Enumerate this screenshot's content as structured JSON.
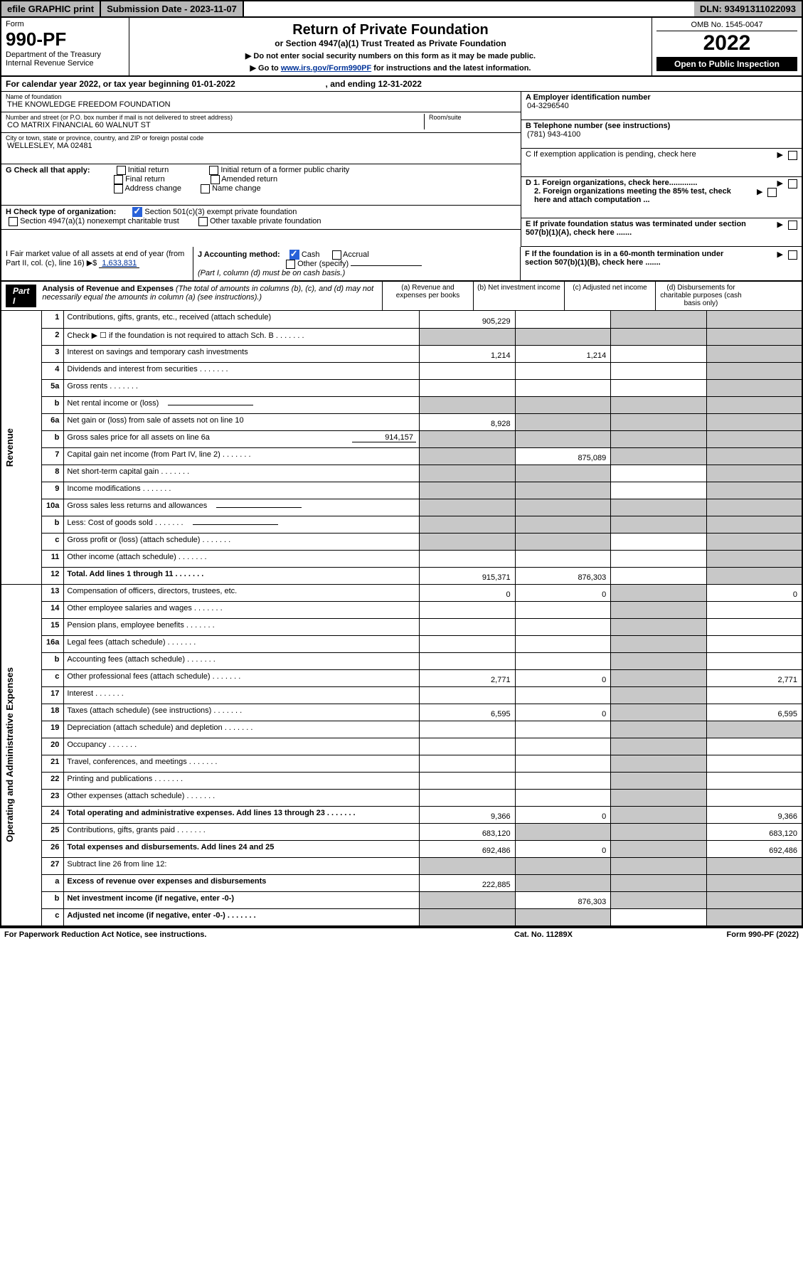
{
  "topbar": {
    "efile": "efile GRAPHIC print",
    "subdate_label": "Submission Date - 2023-11-07",
    "dln": "DLN: 93491311022093"
  },
  "head": {
    "form_word": "Form",
    "form_no": "990-PF",
    "dept": "Department of the Treasury",
    "irs": "Internal Revenue Service",
    "title": "Return of Private Foundation",
    "subtitle": "or Section 4947(a)(1) Trust Treated as Private Foundation",
    "instr1": "▶ Do not enter social security numbers on this form as it may be made public.",
    "instr2_pre": "▶ Go to ",
    "instr2_link": "www.irs.gov/Form990PF",
    "instr2_post": " for instructions and the latest information.",
    "omb": "OMB No. 1545-0047",
    "year": "2022",
    "opento": "Open to Public Inspection"
  },
  "calendar": {
    "text_pre": "For calendar year 2022, or tax year beginning ",
    "begin": "01-01-2022",
    "text_mid": " , and ending ",
    "end": "12-31-2022"
  },
  "id": {
    "name_lbl": "Name of foundation",
    "name": "THE KNOWLEDGE FREEDOM FOUNDATION",
    "addr_lbl": "Number and street (or P.O. box number if mail is not delivered to street address)",
    "addr": "CO MATRIX FINANCIAL 60 WALNUT ST",
    "room_lbl": "Room/suite",
    "city_lbl": "City or town, state or province, country, and ZIP or foreign postal code",
    "city": "WELLESLEY, MA  02481",
    "a_lbl": "A Employer identification number",
    "a_val": "04-3296540",
    "b_lbl": "B Telephone number (see instructions)",
    "b_val": "(781) 943-4100",
    "c_lbl": "C If exemption application is pending, check here",
    "d1_lbl": "D 1. Foreign organizations, check here.............",
    "d2_lbl": "2. Foreign organizations meeting the 85% test, check here and attach computation ...",
    "e_lbl": "E  If private foundation status was terminated under section 507(b)(1)(A), check here .......",
    "f_lbl": "F  If the foundation is in a 60-month termination under section 507(b)(1)(B), check here .......",
    "g_lbl": "G Check all that apply:",
    "g_opts": [
      "Initial return",
      "Final return",
      "Address change",
      "Initial return of a former public charity",
      "Amended return",
      "Name change"
    ],
    "h_lbl": "H Check type of organization:",
    "h_opts": [
      "Section 501(c)(3) exempt private foundation",
      "Section 4947(a)(1) nonexempt charitable trust",
      "Other taxable private foundation"
    ],
    "i_lbl_pre": "I Fair market value of all assets at end of year (from Part II, col. (c), line 16) ▶$ ",
    "i_val": "1,633,831",
    "j_lbl": "J Accounting method:",
    "j_opts": [
      "Cash",
      "Accrual",
      "Other (specify)"
    ],
    "j_note": "(Part I, column (d) must be on cash basis.)"
  },
  "part1": {
    "label": "Part I",
    "hdr": "Analysis of Revenue and Expenses",
    "hdr_note": " (The total of amounts in columns (b), (c), and (d) may not necessarily equal the amounts in column (a) (see instructions).)",
    "col_a": "(a)  Revenue and expenses per books",
    "col_b": "(b)  Net investment income",
    "col_c": "(c)  Adjusted net income",
    "col_d": "(d)  Disbursements for charitable purposes (cash basis only)"
  },
  "sidelabels": {
    "rev": "Revenue",
    "ope": "Operating and Administrative Expenses"
  },
  "rows": [
    {
      "n": "1",
      "l": "Contributions, gifts, grants, etc., received (attach schedule)",
      "a": "905,229",
      "b": "",
      "c": "grey",
      "d": "grey"
    },
    {
      "n": "2",
      "l": "Check ▶ ☐  if the foundation is not required to attach Sch. B",
      "a": "grey",
      "b": "grey",
      "c": "grey",
      "d": "grey",
      "dots": true
    },
    {
      "n": "3",
      "l": "Interest on savings and temporary cash investments",
      "a": "1,214",
      "b": "1,214",
      "c": "",
      "d": "grey"
    },
    {
      "n": "4",
      "l": "Dividends and interest from securities",
      "a": "",
      "b": "",
      "c": "",
      "d": "grey",
      "dots": true
    },
    {
      "n": "5a",
      "l": "Gross rents",
      "a": "",
      "b": "",
      "c": "",
      "d": "grey",
      "dots": true
    },
    {
      "n": "b",
      "l": "Net rental income or (loss)",
      "a": "grey",
      "b": "grey",
      "c": "grey",
      "d": "grey",
      "inline": true
    },
    {
      "n": "6a",
      "l": "Net gain or (loss) from sale of assets not on line 10",
      "a": "8,928",
      "b": "grey",
      "c": "grey",
      "d": "grey"
    },
    {
      "n": "b",
      "l": "Gross sales price for all assets on line 6a",
      "inline_val": "914,157",
      "a": "grey",
      "b": "grey",
      "c": "grey",
      "d": "grey"
    },
    {
      "n": "7",
      "l": "Capital gain net income (from Part IV, line 2)",
      "a": "grey",
      "b": "875,089",
      "c": "grey",
      "d": "grey",
      "dots": true
    },
    {
      "n": "8",
      "l": "Net short-term capital gain",
      "a": "grey",
      "b": "grey",
      "c": "",
      "d": "grey",
      "dots": true
    },
    {
      "n": "9",
      "l": "Income modifications",
      "a": "grey",
      "b": "grey",
      "c": "",
      "d": "grey",
      "dots": true
    },
    {
      "n": "10a",
      "l": "Gross sales less returns and allowances",
      "a": "grey",
      "b": "grey",
      "c": "grey",
      "d": "grey",
      "inline": true
    },
    {
      "n": "b",
      "l": "Less: Cost of goods sold",
      "a": "grey",
      "b": "grey",
      "c": "grey",
      "d": "grey",
      "inline": true,
      "dots": true
    },
    {
      "n": "c",
      "l": "Gross profit or (loss) (attach schedule)",
      "a": "grey",
      "b": "grey",
      "c": "",
      "d": "grey",
      "dots": true
    },
    {
      "n": "11",
      "l": "Other income (attach schedule)",
      "a": "",
      "b": "",
      "c": "",
      "d": "grey",
      "dots": true
    },
    {
      "n": "12",
      "l": "Total. Add lines 1 through 11",
      "bold": true,
      "a": "915,371",
      "b": "876,303",
      "c": "",
      "d": "grey",
      "dots": true
    },
    {
      "n": "13",
      "l": "Compensation of officers, directors, trustees, etc.",
      "a": "0",
      "b": "0",
      "c": "grey",
      "d": "0"
    },
    {
      "n": "14",
      "l": "Other employee salaries and wages",
      "a": "",
      "b": "",
      "c": "grey",
      "d": "",
      "dots": true
    },
    {
      "n": "15",
      "l": "Pension plans, employee benefits",
      "a": "",
      "b": "",
      "c": "grey",
      "d": "",
      "dots": true
    },
    {
      "n": "16a",
      "l": "Legal fees (attach schedule)",
      "a": "",
      "b": "",
      "c": "grey",
      "d": "",
      "dots": true
    },
    {
      "n": "b",
      "l": "Accounting fees (attach schedule)",
      "a": "",
      "b": "",
      "c": "grey",
      "d": "",
      "dots": true
    },
    {
      "n": "c",
      "l": "Other professional fees (attach schedule)",
      "a": "2,771",
      "b": "0",
      "c": "grey",
      "d": "2,771",
      "dots": true
    },
    {
      "n": "17",
      "l": "Interest",
      "a": "",
      "b": "",
      "c": "grey",
      "d": "",
      "dots": true
    },
    {
      "n": "18",
      "l": "Taxes (attach schedule) (see instructions)",
      "a": "6,595",
      "b": "0",
      "c": "grey",
      "d": "6,595",
      "dots": true
    },
    {
      "n": "19",
      "l": "Depreciation (attach schedule) and depletion",
      "a": "",
      "b": "",
      "c": "grey",
      "d": "grey",
      "dots": true
    },
    {
      "n": "20",
      "l": "Occupancy",
      "a": "",
      "b": "",
      "c": "grey",
      "d": "",
      "dots": true
    },
    {
      "n": "21",
      "l": "Travel, conferences, and meetings",
      "a": "",
      "b": "",
      "c": "grey",
      "d": "",
      "dots": true
    },
    {
      "n": "22",
      "l": "Printing and publications",
      "a": "",
      "b": "",
      "c": "grey",
      "d": "",
      "dots": true
    },
    {
      "n": "23",
      "l": "Other expenses (attach schedule)",
      "a": "",
      "b": "",
      "c": "grey",
      "d": "",
      "dots": true
    },
    {
      "n": "24",
      "l": "Total operating and administrative expenses. Add lines 13 through 23",
      "bold": true,
      "a": "9,366",
      "b": "0",
      "c": "grey",
      "d": "9,366",
      "dots": true
    },
    {
      "n": "25",
      "l": "Contributions, gifts, grants paid",
      "a": "683,120",
      "b": "grey",
      "c": "grey",
      "d": "683,120",
      "dots": true
    },
    {
      "n": "26",
      "l": "Total expenses and disbursements. Add lines 24 and 25",
      "bold": true,
      "a": "692,486",
      "b": "0",
      "c": "grey",
      "d": "692,486"
    },
    {
      "n": "27",
      "l": "Subtract line 26 from line 12:",
      "a": "grey",
      "b": "grey",
      "c": "grey",
      "d": "grey"
    },
    {
      "n": "a",
      "l": "Excess of revenue over expenses and disbursements",
      "bold": true,
      "a": "222,885",
      "b": "grey",
      "c": "grey",
      "d": "grey"
    },
    {
      "n": "b",
      "l": "Net investment income (if negative, enter -0-)",
      "bold": true,
      "a": "grey",
      "b": "876,303",
      "c": "grey",
      "d": "grey"
    },
    {
      "n": "c",
      "l": "Adjusted net income (if negative, enter -0-)",
      "bold": true,
      "a": "grey",
      "b": "grey",
      "c": "",
      "d": "grey",
      "dots": true
    }
  ],
  "footer": {
    "left": "For Paperwork Reduction Act Notice, see instructions.",
    "center": "Cat. No. 11289X",
    "right": "Form 990-PF (2022)"
  },
  "colors": {
    "grey": "#c8c8c8",
    "headerbg": "#b8b8b8",
    "link": "#003399",
    "check": "#2962d9"
  }
}
